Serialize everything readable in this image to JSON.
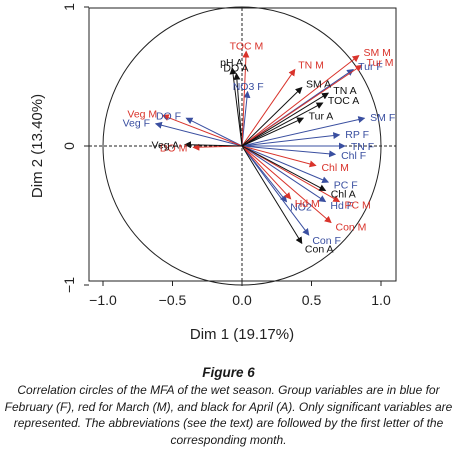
{
  "chart_data": {
    "type": "scatter",
    "subtype": "correlation-circle",
    "xlabel": "Dim 1 (19.17%)",
    "ylabel": "Dim 2 (13.40%)",
    "xlim": [
      -1.1,
      1.1
    ],
    "ylim": [
      -1.05,
      1.05
    ],
    "xticks": [
      "−1.0",
      "−0.5",
      "0.0",
      "0.5",
      "1.0"
    ],
    "yticks": [
      "−1",
      "0",
      "1"
    ],
    "grid": false,
    "unit_circle": true,
    "series": [
      {
        "color": "#3a4fa0",
        "points": [
          {
            "label": "Veg F",
            "x": -0.62,
            "y": 0.16
          },
          {
            "label": "DO F",
            "x": -0.4,
            "y": 0.2
          },
          {
            "label": "NO3 F",
            "x": 0.04,
            "y": 0.39
          },
          {
            "label": "Tur F",
            "x": 0.8,
            "y": 0.55
          },
          {
            "label": "SM F",
            "x": 0.88,
            "y": 0.2
          },
          {
            "label": "RP F",
            "x": 0.7,
            "y": 0.08
          },
          {
            "label": "TN F",
            "x": 0.74,
            "y": 0.0
          },
          {
            "label": "Chl F",
            "x": 0.67,
            "y": -0.06
          },
          {
            "label": "PC F",
            "x": 0.62,
            "y": -0.26
          },
          {
            "label": "Hd F",
            "x": 0.6,
            "y": -0.4
          },
          {
            "label": "NO2",
            "x": 0.32,
            "y": -0.4
          },
          {
            "label": "Con F",
            "x": 0.48,
            "y": -0.64
          }
        ]
      },
      {
        "color": "#d9332b",
        "points": [
          {
            "label": "TOC M",
            "x": 0.03,
            "y": 0.68
          },
          {
            "label": "TN M",
            "x": 0.38,
            "y": 0.55
          },
          {
            "label": "SM M",
            "x": 0.84,
            "y": 0.65
          },
          {
            "label": "Tur M",
            "x": 0.86,
            "y": 0.58
          },
          {
            "label": "Veg M",
            "x": -0.57,
            "y": 0.22
          },
          {
            "label": "DO M",
            "x": -0.35,
            "y": -0.01
          },
          {
            "label": "Chl M",
            "x": 0.53,
            "y": -0.14
          },
          {
            "label": "Hd M",
            "x": 0.35,
            "y": -0.38
          },
          {
            "label": "PC M",
            "x": 0.7,
            "y": -0.4
          },
          {
            "label": "Con M",
            "x": 0.64,
            "y": -0.55
          }
        ]
      },
      {
        "color": "#111111",
        "points": [
          {
            "label": "pH A",
            "x": -0.07,
            "y": 0.56
          },
          {
            "label": "DO A",
            "x": -0.04,
            "y": 0.52
          },
          {
            "label": "SM A",
            "x": 0.43,
            "y": 0.42
          },
          {
            "label": "TN A",
            "x": 0.62,
            "y": 0.38
          },
          {
            "label": "TOC A",
            "x": 0.58,
            "y": 0.31
          },
          {
            "label": "Tur A",
            "x": 0.44,
            "y": 0.2
          },
          {
            "label": "Veg A",
            "x": -0.41,
            "y": 0.01
          },
          {
            "label": "Chl A",
            "x": 0.6,
            "y": -0.32
          },
          {
            "label": "Con A",
            "x": 0.43,
            "y": -0.7
          }
        ]
      }
    ]
  },
  "caption": {
    "title": "Figure 6",
    "text": "Correlation circles of the MFA of the wet season. Group variables are in blue for February (F), red for March (M), and black for April (A). Only significant variables are represented. The abbreviations (see the text) are followed by the first letter of the corresponding month."
  }
}
